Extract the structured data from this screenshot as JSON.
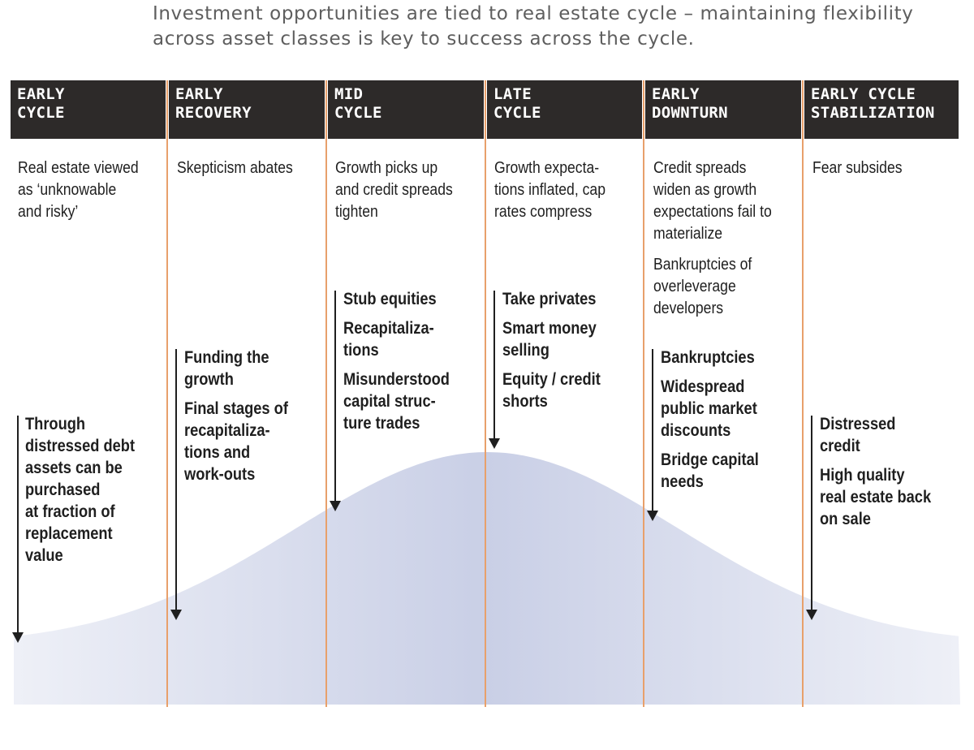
{
  "title": "Investment opportunities are tied to real estate cycle – maintaining flexibility across asset classes is key to  success across the cycle.",
  "colors": {
    "header_bg": "#2d2a29",
    "header_text": "#ffffff",
    "divider": "#e8a06b",
    "curve_fill": "#c9cfe6",
    "arrow": "#1f1f1f"
  },
  "phases": [
    {
      "header": "EARLY\nCYCLE",
      "descriptions": [
        "Real estate viewed\nas ‘unknowable\nand risky’"
      ],
      "opportunities": [
        "Through\ndistressed debt\nassets can be\npurchased\nat fraction of\nreplacement\nvalue"
      ]
    },
    {
      "header": "EARLY\nRECOVERY",
      "descriptions": [
        "Skepticism abates"
      ],
      "opportunities": [
        "Funding the\ngrowth",
        "Final stages of\nrecapitaliza-\ntions and\nwork-outs"
      ]
    },
    {
      "header": "MID\nCYCLE",
      "descriptions": [
        "Growth picks up\nand credit spreads\ntighten"
      ],
      "opportunities": [
        "Stub equities",
        "Recapitaliza-\ntions",
        "Misunderstood\ncapital struc-\nture trades"
      ]
    },
    {
      "header": "LATE\nCYCLE",
      "descriptions": [
        "Growth expecta-\ntions inflated, cap\nrates compress"
      ],
      "opportunities": [
        "Take privates",
        "Smart money\nselling",
        "Equity / credit\nshorts"
      ]
    },
    {
      "header": "EARLY\nDOWNTURN",
      "descriptions": [
        "Credit spreads\nwiden as growth\nexpectations fail to\nmaterialize",
        "Bankruptcies of\noverleverage\ndevelopers"
      ],
      "opportunities": [
        "Bankruptcies",
        "Widespread\npublic market\ndiscounts",
        "Bridge capital\nneeds"
      ]
    },
    {
      "header": "EARLY CYCLE\nSTABILIZATION",
      "descriptions": [
        "Fear subsides"
      ],
      "opportunities": [
        "Distressed\ncredit",
        "High quality\nreal estate back\non sale"
      ]
    }
  ]
}
